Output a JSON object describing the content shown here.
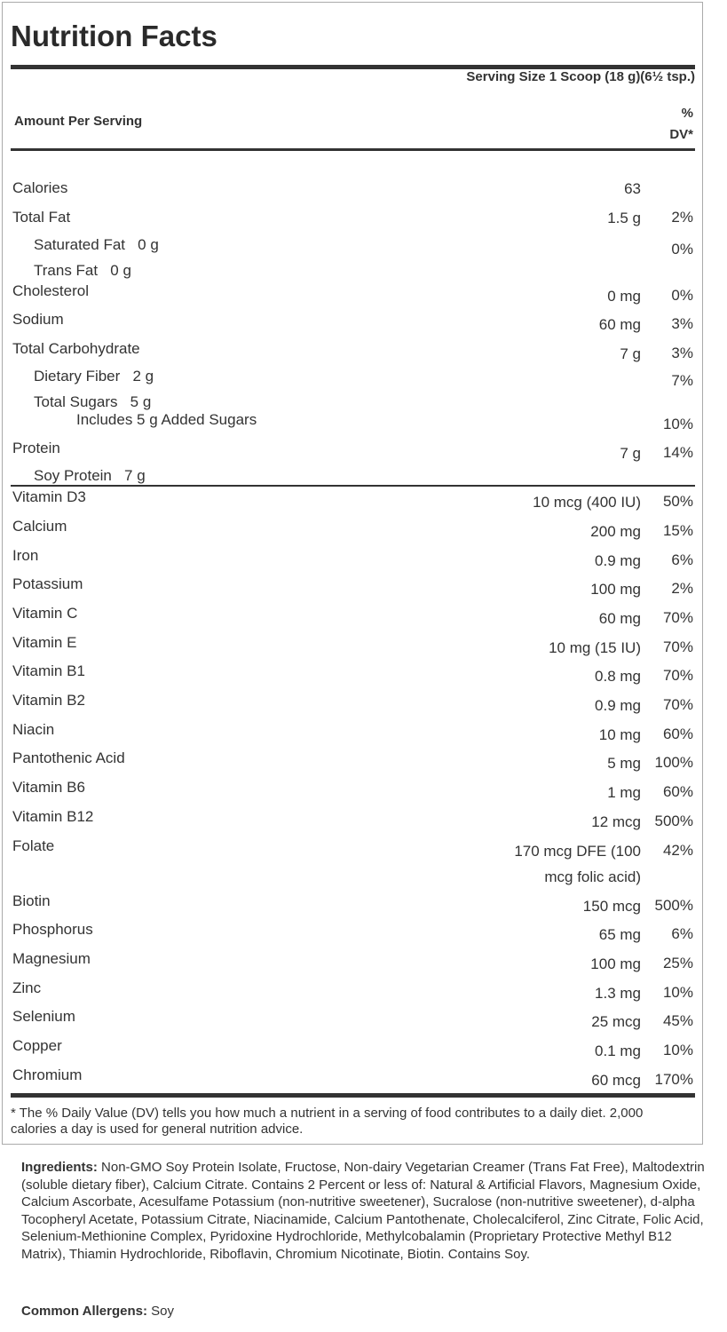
{
  "title": "Nutrition Facts",
  "serving_size": "Serving Size 1 Scoop (18 g)(6½ tsp.)",
  "amount_per_serving": "Amount Per Serving",
  "dv_header": [
    "%",
    "DV*"
  ],
  "nutrients": [
    {
      "label": "Calories",
      "amount": "63",
      "dv": "",
      "indent": 0
    },
    {
      "label": "Total Fat",
      "amount": "1.5 g",
      "dv": "2%",
      "indent": 0
    },
    {
      "label": "Saturated Fat   0 g",
      "amount": "",
      "dv": "0%",
      "indent": 1
    },
    {
      "label": "Trans Fat   0 g",
      "amount": "",
      "dv": "",
      "indent": 1
    },
    {
      "label": "Cholesterol",
      "amount": "0 mg",
      "dv": "0%",
      "indent": 0
    },
    {
      "label": "Sodium",
      "amount": "60 mg",
      "dv": "3%",
      "indent": 0
    },
    {
      "label": "Total Carbohydrate",
      "amount": "7 g",
      "dv": "3%",
      "indent": 0
    },
    {
      "label": "Dietary Fiber   2 g",
      "amount": "",
      "dv": "7%",
      "indent": 1
    },
    {
      "label": "Total Sugars   5 g",
      "amount": "",
      "dv": "",
      "indent": 1
    },
    {
      "label": "Includes 5 g Added Sugars",
      "amount": "",
      "dv": "10%",
      "indent": 2
    },
    {
      "label": "Protein",
      "amount": "7 g",
      "dv": "14%",
      "indent": 0
    },
    {
      "label": "Soy Protein   7 g",
      "amount": "",
      "dv": "",
      "indent": 1
    }
  ],
  "vitamins": [
    {
      "label": "Vitamin D3",
      "amount": "10 mcg (400 IU)",
      "dv": "50%"
    },
    {
      "label": "Calcium",
      "amount": "200 mg",
      "dv": "15%"
    },
    {
      "label": "Iron",
      "amount": "0.9 mg",
      "dv": "6%"
    },
    {
      "label": "Potassium",
      "amount": "100 mg",
      "dv": "2%"
    },
    {
      "label": "Vitamin C",
      "amount": "60 mg",
      "dv": "70%"
    },
    {
      "label": "Vitamin E",
      "amount": "10 mg (15 IU)",
      "dv": "70%"
    },
    {
      "label": "Vitamin B1",
      "amount": "0.8 mg",
      "dv": "70%"
    },
    {
      "label": "Vitamin B2",
      "amount": "0.9 mg",
      "dv": "70%"
    },
    {
      "label": "Niacin",
      "amount": "10 mg",
      "dv": "60%"
    },
    {
      "label": "Pantothenic Acid",
      "amount": "5 mg",
      "dv": "100%"
    },
    {
      "label": "Vitamin B6",
      "amount": "1 mg",
      "dv": "60%"
    },
    {
      "label": "Vitamin B12",
      "amount": "12 mcg",
      "dv": "500%"
    },
    {
      "label": "Folate",
      "amount": "170 mcg DFE (100\nmcg folic acid)",
      "dv": "42%"
    },
    {
      "label": "Biotin",
      "amount": "150 mcg",
      "dv": "500%"
    },
    {
      "label": "Phosphorus",
      "amount": "65 mg",
      "dv": "6%"
    },
    {
      "label": "Magnesium",
      "amount": "100 mg",
      "dv": "25%"
    },
    {
      "label": "Zinc",
      "amount": "1.3 mg",
      "dv": "10%"
    },
    {
      "label": "Selenium",
      "amount": "25 mcg",
      "dv": "45%"
    },
    {
      "label": "Copper",
      "amount": "0.1 mg",
      "dv": "10%"
    },
    {
      "label": "Chromium",
      "amount": "60 mcg",
      "dv": "170%"
    }
  ],
  "footnote": "* The % Daily Value (DV) tells you how much a nutrient in a serving of food contributes to a daily diet. 2,000 calories a day is used for general nutrition advice.",
  "ingredients_label": "Ingredients:",
  "ingredients": "Non-GMO Soy Protein Isolate, Fructose, Non-dairy Vegetarian Creamer (Trans Fat Free), Maltodextrin (soluble dietary fiber), Calcium Citrate. Contains 2 Percent or less of: Natural & Artificial Flavors, Magnesium Oxide, Calcium Ascorbate, Acesulfame Potassium (non-nutritive sweetener), Sucralose (non-nutritive sweetener), d-alpha Tocopheryl Acetate, Potassium Citrate, Niacinamide, Calcium Pantothenate, Cholecalciferol, Zinc Citrate, Folic Acid, Selenium-Methionine Complex, Pyridoxine Hydrochloride, Methylcobalamin (Proprietary Protective Methyl B12 Matrix), Thiamin Hydrochloride, Riboflavin, Chromium Nicotinate, Biotin. Contains Soy.",
  "allergens_label": "Common Allergens:",
  "allergens": "Soy"
}
